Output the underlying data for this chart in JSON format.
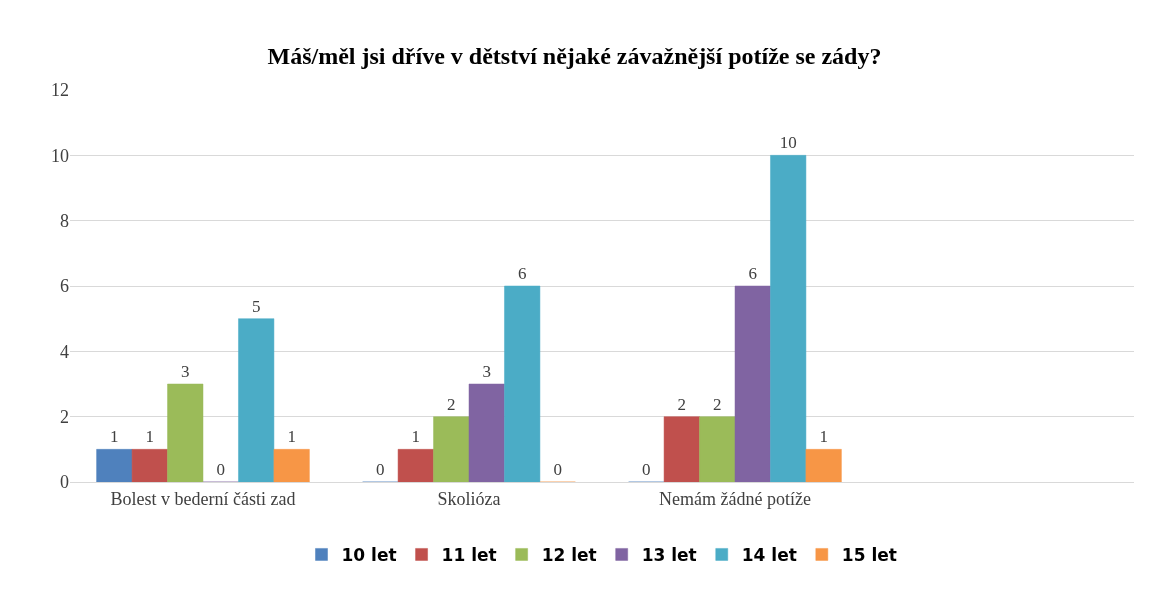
{
  "chart_data": {
    "type": "bar",
    "title": "Máš/měl jsi dříve v dětství nějaké závažnější potíže se zády?",
    "categories": [
      "Bolest v bederní části zad",
      "Skolióza",
      "Nemám žádné potíže",
      null
    ],
    "series": [
      {
        "name": "10 let",
        "color": "#4f81bd",
        "values": [
          1,
          0,
          0,
          null
        ]
      },
      {
        "name": "11 let",
        "color": "#c0504d",
        "values": [
          1,
          1,
          2,
          null
        ]
      },
      {
        "name": "12 let",
        "color": "#9bbb59",
        "values": [
          3,
          2,
          2,
          null
        ]
      },
      {
        "name": "13 let",
        "color": "#8064a2",
        "values": [
          0,
          3,
          6,
          null
        ]
      },
      {
        "name": "14 let",
        "color": "#4bacc6",
        "values": [
          5,
          6,
          10,
          null
        ]
      },
      {
        "name": "15 let",
        "color": "#f79646",
        "values": [
          1,
          0,
          1,
          null
        ]
      }
    ],
    "ylim": [
      0,
      12
    ],
    "yticks": [
      0,
      2,
      4,
      6,
      8,
      10,
      12
    ],
    "grid": "y",
    "legend": "bottom",
    "data_labels": true
  }
}
